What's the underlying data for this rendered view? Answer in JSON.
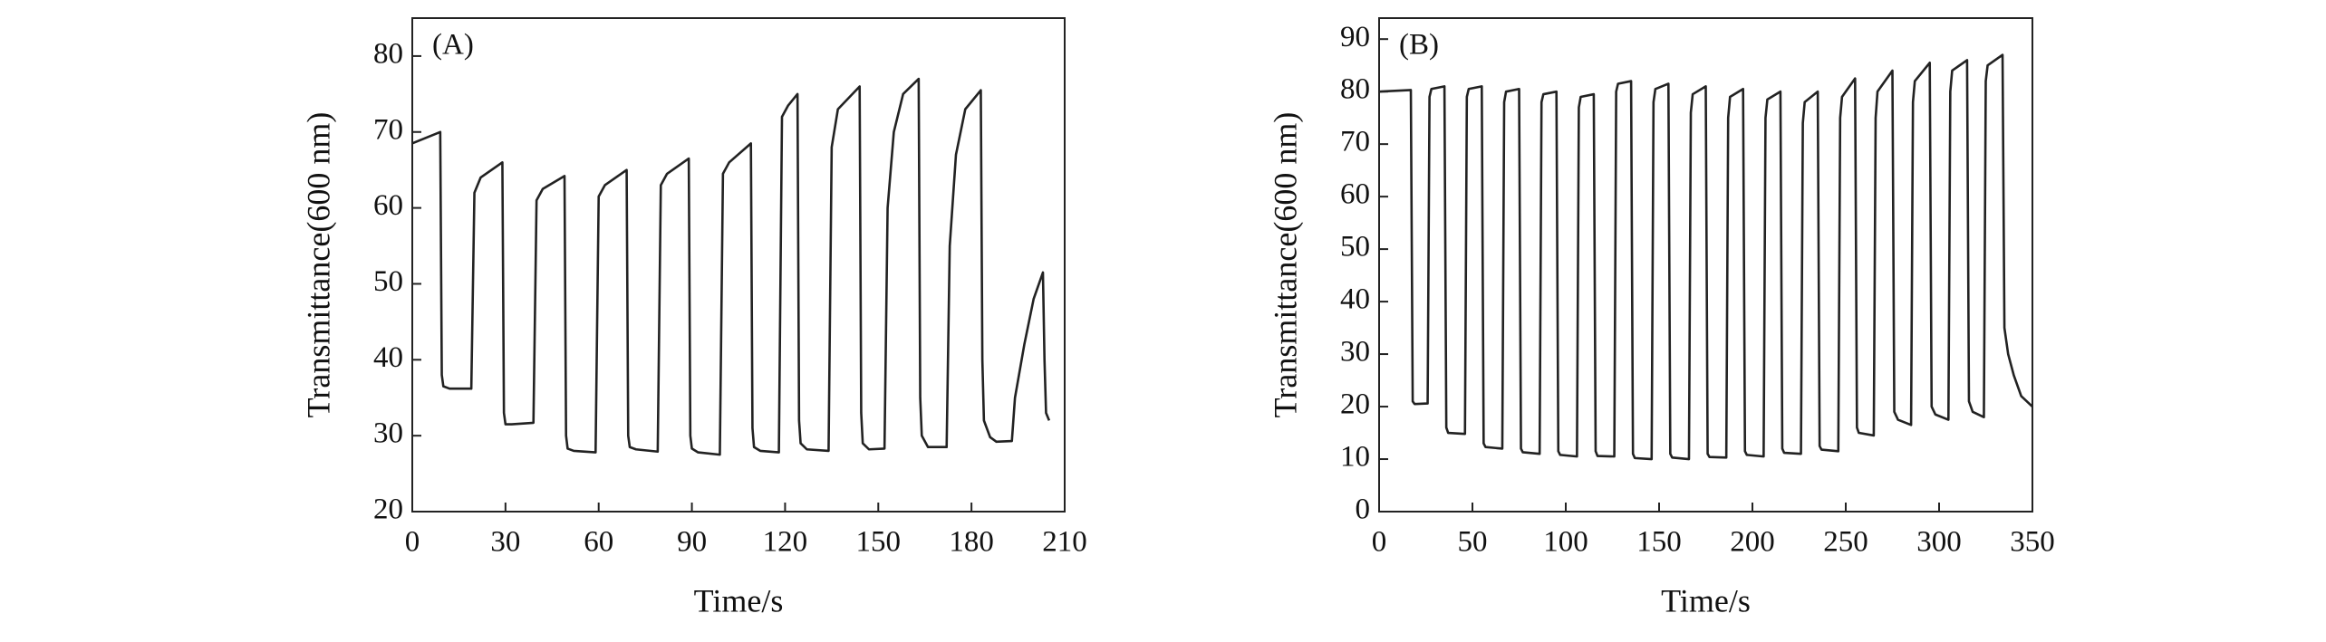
{
  "chart_data": [
    {
      "type": "line",
      "annotation": "(A)",
      "xlabel": "Time/s",
      "ylabel": "Transmittance(600 nm)",
      "color": "#222222",
      "xlim": [
        0,
        210
      ],
      "xticks": [
        0,
        30,
        60,
        90,
        120,
        150,
        180,
        210
      ],
      "ylim": [
        20,
        85
      ],
      "yticks": [
        20,
        30,
        40,
        50,
        60,
        70,
        80
      ],
      "x": [
        0,
        9,
        9.5,
        10,
        12,
        19,
        20,
        22,
        29,
        29.5,
        30,
        32,
        39,
        40,
        42,
        49,
        49.5,
        50,
        52,
        59,
        60,
        62,
        69,
        69.5,
        70,
        72,
        79,
        80,
        82,
        89,
        89.5,
        90,
        92,
        99,
        100,
        102,
        109,
        109.5,
        110,
        112,
        118,
        119,
        121,
        124,
        124.5,
        125,
        127,
        134,
        135,
        137,
        144,
        144.5,
        145,
        147,
        152,
        153,
        155,
        158,
        163,
        163.5,
        164,
        166,
        172,
        173,
        175,
        178,
        183,
        183.5,
        184,
        186,
        188,
        193,
        194,
        197,
        200,
        203,
        203.5,
        204,
        205
      ],
      "values": [
        68.5,
        70,
        38,
        36.5,
        36.2,
        36.2,
        62,
        64,
        66,
        33,
        31.5,
        31.5,
        31.7,
        61,
        62.5,
        64.2,
        30,
        28.3,
        28,
        27.8,
        61.5,
        63,
        65,
        30,
        28.5,
        28.2,
        27.9,
        63,
        64.5,
        66.5,
        30,
        28.3,
        27.8,
        27.5,
        64.5,
        66,
        68.5,
        31,
        28.5,
        28,
        27.8,
        72,
        73.5,
        75,
        32,
        29,
        28.2,
        28,
        68,
        73,
        76,
        33,
        29,
        28.2,
        28.3,
        60,
        70,
        75,
        77,
        35,
        30,
        28.5,
        28.5,
        55,
        67,
        73,
        75.5,
        40,
        32,
        29.8,
        29.2,
        29.3,
        35,
        42,
        48,
        51.5,
        40,
        33,
        32
      ]
    },
    {
      "type": "line",
      "annotation": "(B)",
      "xlabel": "Time/s",
      "ylabel": "Transmittance(600 nm)",
      "color": "#222222",
      "xlim": [
        0,
        350
      ],
      "xticks": [
        0,
        50,
        100,
        150,
        200,
        250,
        300,
        350
      ],
      "ylim": [
        0,
        94
      ],
      "yticks": [
        0,
        10,
        20,
        30,
        40,
        50,
        60,
        70,
        80,
        90
      ],
      "x": [
        0,
        17,
        18,
        19,
        26,
        27,
        28,
        35,
        36,
        37,
        46,
        47,
        48,
        55,
        56,
        57,
        66,
        67,
        68,
        75,
        76,
        77,
        86,
        87,
        88,
        95,
        96,
        97,
        106,
        107,
        108,
        115,
        116,
        117,
        126,
        127,
        128,
        135,
        136,
        137,
        146,
        147,
        148,
        155,
        156,
        157,
        166,
        167,
        168,
        175,
        176,
        177,
        186,
        187,
        188,
        195,
        196,
        197,
        206,
        207,
        208,
        215,
        216,
        217,
        226,
        227,
        228,
        235,
        236,
        237,
        246,
        247,
        248,
        255,
        256,
        257,
        265,
        266,
        267,
        275,
        276,
        278,
        285,
        286,
        287,
        295,
        296,
        298,
        305,
        306,
        307,
        315,
        316,
        318,
        324,
        325,
        326,
        334,
        335,
        337,
        340,
        344,
        350
      ],
      "values": [
        80,
        80.3,
        21,
        20.5,
        20.6,
        79,
        80.5,
        81,
        16,
        15,
        14.8,
        79,
        80.5,
        81,
        13,
        12.3,
        12,
        78,
        80,
        80.5,
        12,
        11.3,
        11,
        78,
        79.5,
        80,
        11.5,
        10.8,
        10.5,
        77,
        79,
        79.5,
        11.5,
        10.6,
        10.5,
        80,
        81.5,
        82,
        11,
        10.2,
        10,
        78,
        80.5,
        81.5,
        11,
        10.3,
        10,
        76,
        79.5,
        81,
        11,
        10.4,
        10.3,
        75,
        79,
        80.5,
        11.5,
        10.8,
        10.5,
        75,
        78.5,
        80,
        12,
        11.2,
        11,
        74,
        78,
        80,
        12.5,
        11.8,
        11.5,
        75,
        79,
        82.5,
        16,
        15,
        14.5,
        75,
        80,
        84,
        19,
        17.5,
        16.5,
        78,
        82,
        85.5,
        20,
        18.5,
        17.5,
        80,
        84,
        86,
        21,
        19,
        18,
        82,
        85,
        87,
        35,
        30,
        26,
        22,
        20
      ]
    }
  ]
}
